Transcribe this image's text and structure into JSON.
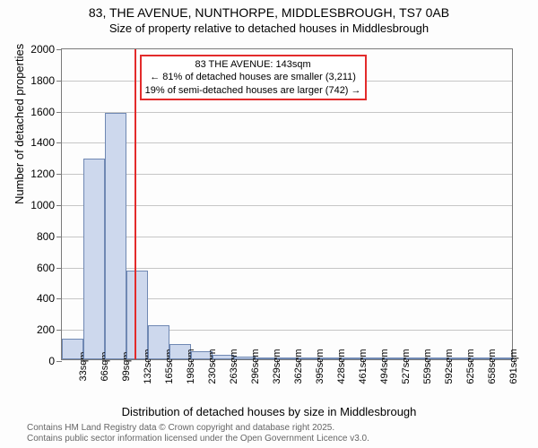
{
  "title": "83, THE AVENUE, NUNTHORPE, MIDDLESBROUGH, TS7 0AB",
  "subtitle": "Size of property relative to detached houses in Middlesbrough",
  "chart": {
    "type": "histogram",
    "ylim": [
      0,
      2000
    ],
    "yticks": [
      0,
      200,
      400,
      600,
      800,
      1000,
      1200,
      1400,
      1600,
      1800,
      2000
    ],
    "ylabel": "Number of detached properties",
    "xlabel": "Distribution of detached houses by size in Middlesbrough",
    "xticks": [
      "33sqm",
      "66sqm",
      "99sqm",
      "132sqm",
      "165sqm",
      "198sqm",
      "230sqm",
      "263sqm",
      "296sqm",
      "329sqm",
      "362sqm",
      "395sqm",
      "428sqm",
      "461sqm",
      "494sqm",
      "527sqm",
      "559sqm",
      "592sqm",
      "625sqm",
      "658sqm",
      "691sqm"
    ],
    "bar_color": "#cdd8ed",
    "bar_border": "#6f88b3",
    "bars": [
      130,
      1290,
      1580,
      570,
      220,
      100,
      50,
      30,
      20,
      10,
      5,
      3,
      2,
      2,
      2,
      2,
      2,
      2,
      1,
      1,
      1
    ],
    "marker_x_index": 3.36,
    "marker_color": "#e32b2b",
    "annotation": {
      "line1": "83 THE AVENUE: 143sqm",
      "line2": "← 81% of detached houses are smaller (3,211)",
      "line3": "19% of semi-detached houses are larger (742) →"
    },
    "background_color": "#fdfdfd",
    "grid_color": "#c6c6c6"
  },
  "footer": {
    "line1": "Contains HM Land Registry data © Crown copyright and database right 2025.",
    "line2": "Contains public sector information licensed under the Open Government Licence v3.0."
  }
}
